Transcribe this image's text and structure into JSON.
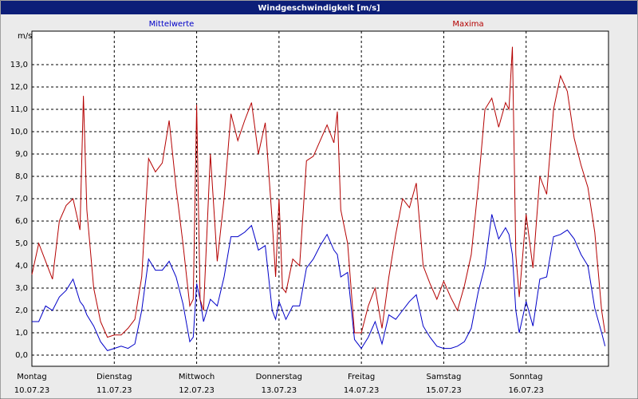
{
  "chart_data": {
    "type": "line",
    "title": "Windgeschwindigkeit [m/s]",
    "y_unit": "m/s",
    "x": [
      0,
      2,
      4,
      6,
      8,
      10,
      12,
      14,
      15,
      16,
      18,
      20,
      22,
      24,
      26,
      28,
      30,
      32,
      34,
      36,
      38,
      40,
      42,
      44,
      46,
      47,
      48,
      49,
      50,
      52,
      54,
      56,
      58,
      60,
      62,
      64,
      66,
      68,
      70,
      71,
      72,
      73,
      74,
      76,
      78,
      80,
      82,
      84,
      86,
      88,
      89,
      90,
      92,
      94,
      96,
      98,
      100,
      102,
      104,
      106,
      108,
      110,
      112,
      114,
      116,
      118,
      120,
      122,
      124,
      126,
      128,
      130,
      132,
      134,
      136,
      138,
      139,
      140,
      141,
      142,
      144,
      146,
      148,
      150,
      152,
      154,
      156,
      158,
      160,
      162,
      164,
      166,
      167
    ],
    "series": [
      {
        "name": "Mittelwerte",
        "color": "#0000c8",
        "values": [
          1.5,
          1.5,
          2.2,
          2.0,
          2.6,
          2.9,
          3.4,
          2.4,
          2.2,
          1.8,
          1.3,
          0.6,
          0.2,
          0.3,
          0.4,
          0.3,
          0.5,
          2.0,
          4.3,
          3.8,
          3.8,
          4.2,
          3.5,
          2.3,
          0.6,
          0.8,
          3.2,
          2.5,
          1.5,
          2.5,
          2.2,
          3.5,
          5.3,
          5.3,
          5.5,
          5.8,
          4.7,
          4.9,
          2.0,
          1.6,
          2.4,
          2.0,
          1.6,
          2.2,
          2.2,
          3.9,
          4.3,
          4.9,
          5.4,
          4.7,
          4.5,
          3.5,
          3.7,
          0.7,
          0.3,
          0.8,
          1.5,
          0.5,
          1.8,
          1.6,
          2.0,
          2.4,
          2.7,
          1.3,
          0.8,
          0.4,
          0.3,
          0.3,
          0.4,
          0.6,
          1.2,
          2.8,
          4.0,
          6.3,
          5.2,
          5.7,
          5.4,
          4.5,
          2.0,
          1.0,
          2.4,
          1.3,
          3.4,
          3.5,
          5.3,
          5.4,
          5.6,
          5.2,
          4.5,
          4.0,
          2.1,
          1.0,
          0.4
        ]
      },
      {
        "name": "Maxima",
        "color": "#b40000",
        "values": [
          3.6,
          5.0,
          4.2,
          3.4,
          6.0,
          6.7,
          7.0,
          5.6,
          11.6,
          6.5,
          3.0,
          1.5,
          0.8,
          0.9,
          0.9,
          1.2,
          1.6,
          3.5,
          8.8,
          8.2,
          8.6,
          10.5,
          7.5,
          5.0,
          2.2,
          2.5,
          11.2,
          2.5,
          2.0,
          9.0,
          4.2,
          7.0,
          10.8,
          9.6,
          10.5,
          11.3,
          9.0,
          10.4,
          6.0,
          3.5,
          7.0,
          3.0,
          2.8,
          4.3,
          4.0,
          8.7,
          8.9,
          9.6,
          10.3,
          9.5,
          10.9,
          6.5,
          5.0,
          1.0,
          1.0,
          2.2,
          3.0,
          1.2,
          3.5,
          5.4,
          7.0,
          6.6,
          7.7,
          4.0,
          3.2,
          2.5,
          3.3,
          2.6,
          2.0,
          3.1,
          4.5,
          7.5,
          11.0,
          11.5,
          10.2,
          11.3,
          11.0,
          13.8,
          4.5,
          2.6,
          6.3,
          3.9,
          8.0,
          7.2,
          11.0,
          12.5,
          11.8,
          9.7,
          8.5,
          7.5,
          5.5,
          2.0,
          1.0
        ]
      }
    ],
    "xlim": [
      0,
      168
    ],
    "xticks": [
      {
        "value": 0,
        "label": "Montag"
      },
      {
        "value": 24,
        "label": "Dienstag"
      },
      {
        "value": 48,
        "label": "Mittwoch"
      },
      {
        "value": 72,
        "label": "Donnerstag"
      },
      {
        "value": 96,
        "label": "Freitag"
      },
      {
        "value": 120,
        "label": "Samstag"
      },
      {
        "value": 144,
        "label": "Sonntag"
      }
    ],
    "xtick_dates": [
      "10.07.23",
      "11.07.23",
      "12.07.23",
      "13.07.23",
      "14.07.23",
      "15.07.23",
      "16.07.23"
    ],
    "ylim": [
      -0.5,
      14.5
    ],
    "yticks": [
      {
        "value": 0,
        "label": "0,0"
      },
      {
        "value": 1,
        "label": "1,0"
      },
      {
        "value": 2,
        "label": "2,0"
      },
      {
        "value": 3,
        "label": "3,0"
      },
      {
        "value": 4,
        "label": "4,0"
      },
      {
        "value": 5,
        "label": "5,0"
      },
      {
        "value": 6,
        "label": "6,0"
      },
      {
        "value": 7,
        "label": "7,0"
      },
      {
        "value": 8,
        "label": "8,0"
      },
      {
        "value": 9,
        "label": "9,0"
      },
      {
        "value": 10,
        "label": "10,0"
      },
      {
        "value": 11,
        "label": "11,0"
      },
      {
        "value": 12,
        "label": "12,0"
      },
      {
        "value": 13,
        "label": "13,0"
      }
    ],
    "grid": true
  }
}
